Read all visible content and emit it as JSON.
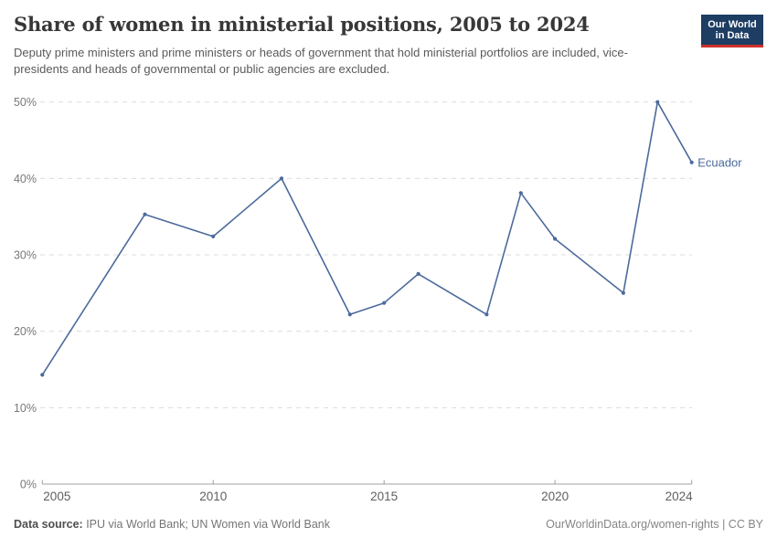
{
  "header": {
    "title": "Share of women in ministerial positions, 2005 to 2024",
    "subtitle": "Deputy prime ministers and prime ministers or heads of government that hold ministerial portfolios are included, vice-presidents and heads of governmental or public agencies are excluded.",
    "logo": {
      "line1": "Our World",
      "line2": "in Data",
      "bg_color": "#1d3d63",
      "accent_color": "#cf3128"
    }
  },
  "chart_data": {
    "type": "line",
    "title": "Share of women in ministerial positions, 2005 to 2024",
    "x": [
      2005,
      2008,
      2010,
      2012,
      2014,
      2015,
      2016,
      2018,
      2019,
      2020,
      2022,
      2023,
      2024
    ],
    "series": [
      {
        "name": "Ecuador",
        "color": "#4c6a9c",
        "values": [
          14.3,
          35.3,
          32.4,
          40,
          22.2,
          23.7,
          27.5,
          22.2,
          38.1,
          32.1,
          25,
          50,
          42.1
        ]
      }
    ],
    "xlabel": "",
    "ylabel": "",
    "xlim": [
      2005,
      2024
    ],
    "ylim": [
      0,
      50
    ],
    "x_ticks": [
      2005,
      2010,
      2015,
      2020,
      2024
    ],
    "y_ticks": [
      0,
      10,
      20,
      30,
      40,
      50
    ],
    "y_tick_suffix": "%",
    "grid": "horizontal-dashed",
    "grid_color": "#dcdcdc",
    "axis_color": "#a0a0a0",
    "legend": "entity-label-at-line-end"
  },
  "footer": {
    "source_label": "Data source:",
    "source_text": " IPU via World Bank; UN Women via World Bank",
    "credit": "OurWorldinData.org/women-rights | CC BY"
  }
}
